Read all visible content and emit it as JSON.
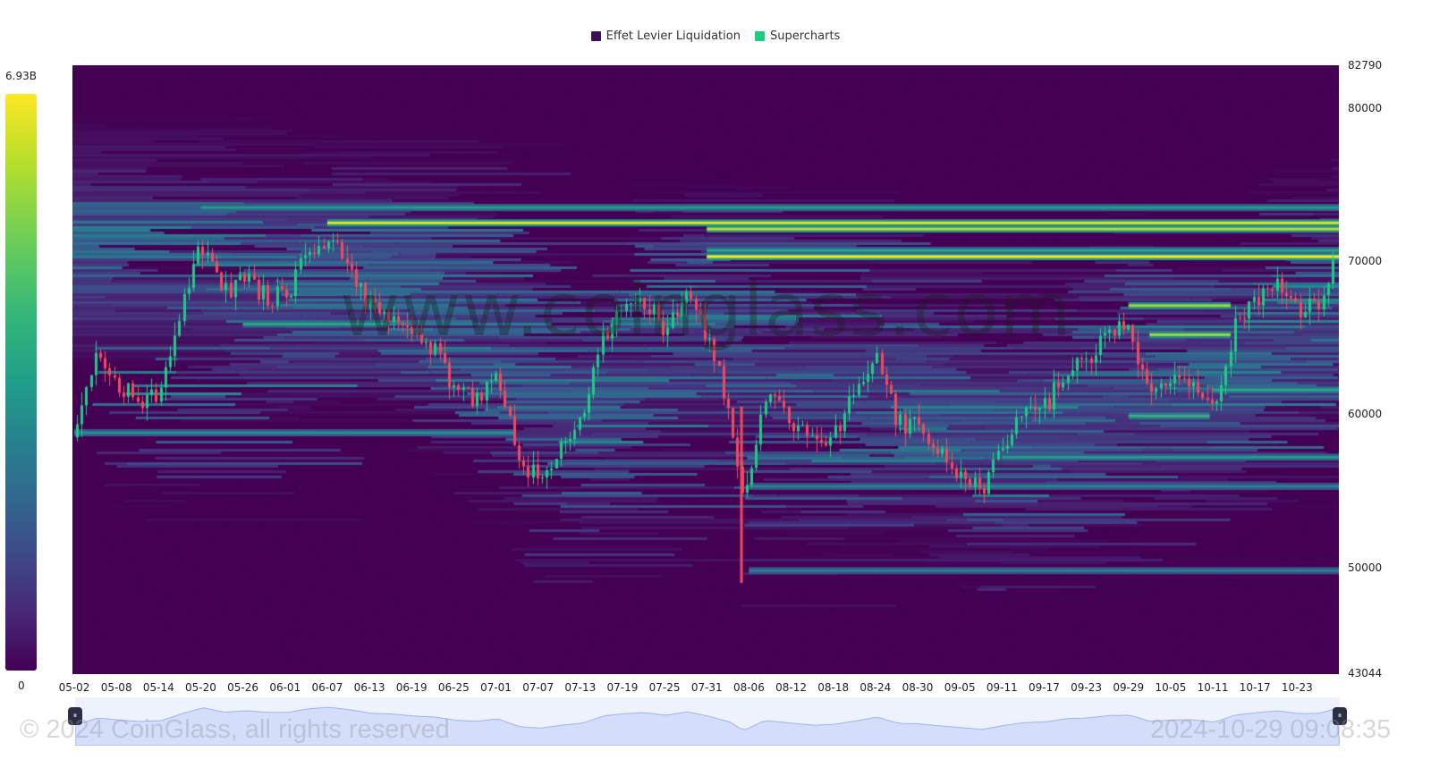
{
  "legend": {
    "items": [
      {
        "label": "Effet Levier Liquidation",
        "color": "#3b0f5c"
      },
      {
        "label": "Supercharts",
        "color": "#1ecb83"
      }
    ]
  },
  "colorbar": {
    "max_label": "6.93B",
    "min_label": "0"
  },
  "watermark": "www.coinglass.com",
  "footer": {
    "copyright": "© 2024 CoinGlass, all rights reserved",
    "timestamp": "2024-10-29 09:08:35"
  },
  "navigator": {
    "left_handle": "⏸",
    "right_handle": "⏸"
  },
  "chart_data": {
    "type": "heatmap",
    "title": "",
    "legend": [
      "Effet Levier Liquidation",
      "Supercharts"
    ],
    "legend_position": "top-center",
    "colorscale": "viridis",
    "colorbar": {
      "min": 0,
      "max": "6.93B"
    },
    "y_axis": {
      "position": "right",
      "min": 43044,
      "max": 82790,
      "ticks": [
        82790,
        80000,
        70000,
        60000,
        50000,
        43044
      ]
    },
    "x_axis": {
      "ticks": [
        "05-02",
        "05-08",
        "05-14",
        "05-20",
        "05-26",
        "06-01",
        "06-07",
        "06-13",
        "06-19",
        "06-25",
        "07-01",
        "07-07",
        "07-13",
        "07-19",
        "07-25",
        "07-31",
        "08-06",
        "08-12",
        "08-18",
        "08-24",
        "08-30",
        "09-05",
        "09-11",
        "09-17",
        "09-23",
        "09-29",
        "10-05",
        "10-11",
        "10-17",
        "10-23"
      ]
    },
    "grid": false,
    "price_series_approx_close": [
      {
        "date": "05-02",
        "close": 58500
      },
      {
        "date": "05-05",
        "close": 63500
      },
      {
        "date": "05-08",
        "close": 62000
      },
      {
        "date": "05-11",
        "close": 60800
      },
      {
        "date": "05-14",
        "close": 61500
      },
      {
        "date": "05-17",
        "close": 66800
      },
      {
        "date": "05-20",
        "close": 71200
      },
      {
        "date": "05-23",
        "close": 67800
      },
      {
        "date": "05-26",
        "close": 69000
      },
      {
        "date": "05-29",
        "close": 67800
      },
      {
        "date": "06-01",
        "close": 67600
      },
      {
        "date": "06-04",
        "close": 70500
      },
      {
        "date": "06-07",
        "close": 71500
      },
      {
        "date": "06-10",
        "close": 69600
      },
      {
        "date": "06-13",
        "close": 67000
      },
      {
        "date": "06-16",
        "close": 66500
      },
      {
        "date": "06-19",
        "close": 65000
      },
      {
        "date": "06-22",
        "close": 64200
      },
      {
        "date": "06-25",
        "close": 61800
      },
      {
        "date": "06-28",
        "close": 61000
      },
      {
        "date": "07-01",
        "close": 62800
      },
      {
        "date": "07-04",
        "close": 57000
      },
      {
        "date": "07-07",
        "close": 55800
      },
      {
        "date": "07-10",
        "close": 58000
      },
      {
        "date": "07-13",
        "close": 59500
      },
      {
        "date": "07-16",
        "close": 65000
      },
      {
        "date": "07-19",
        "close": 66800
      },
      {
        "date": "07-22",
        "close": 67500
      },
      {
        "date": "07-25",
        "close": 65500
      },
      {
        "date": "07-28",
        "close": 68200
      },
      {
        "date": "07-31",
        "close": 64800
      },
      {
        "date": "08-03",
        "close": 60500
      },
      {
        "date": "08-05",
        "close": 54000
      },
      {
        "date": "08-08",
        "close": 61500
      },
      {
        "date": "08-12",
        "close": 59500
      },
      {
        "date": "08-15",
        "close": 58000
      },
      {
        "date": "08-18",
        "close": 58800
      },
      {
        "date": "08-21",
        "close": 61200
      },
      {
        "date": "08-24",
        "close": 64200
      },
      {
        "date": "08-27",
        "close": 59500
      },
      {
        "date": "08-30",
        "close": 59100
      },
      {
        "date": "09-02",
        "close": 57500
      },
      {
        "date": "09-05",
        "close": 56200
      },
      {
        "date": "09-08",
        "close": 54800
      },
      {
        "date": "09-11",
        "close": 57800
      },
      {
        "date": "09-14",
        "close": 60000
      },
      {
        "date": "09-17",
        "close": 60500
      },
      {
        "date": "09-20",
        "close": 63000
      },
      {
        "date": "09-23",
        "close": 63500
      },
      {
        "date": "09-26",
        "close": 65300
      },
      {
        "date": "09-29",
        "close": 65600
      },
      {
        "date": "10-02",
        "close": 60800
      },
      {
        "date": "10-05",
        "close": 62000
      },
      {
        "date": "10-08",
        "close": 62200
      },
      {
        "date": "10-11",
        "close": 60300
      },
      {
        "date": "10-14",
        "close": 65600
      },
      {
        "date": "10-17",
        "close": 67500
      },
      {
        "date": "10-20",
        "close": 68900
      },
      {
        "date": "10-23",
        "close": 66800
      },
      {
        "date": "10-26",
        "close": 67000
      },
      {
        "date": "10-29",
        "close": 71500
      }
    ],
    "liquidation_bands_approx": [
      {
        "price": 72500,
        "intensity": 0.95,
        "from": "06-07",
        "to": "10-29"
      },
      {
        "price": 72100,
        "intensity": 0.9,
        "from": "07-31",
        "to": "10-29"
      },
      {
        "price": 70300,
        "intensity": 1.0,
        "from": "07-31",
        "to": "10-29"
      },
      {
        "price": 70700,
        "intensity": 0.6,
        "from": "07-31",
        "to": "10-29"
      },
      {
        "price": 73500,
        "intensity": 0.55,
        "from": "05-20",
        "to": "10-29"
      },
      {
        "price": 67100,
        "intensity": 0.85,
        "from": "09-29",
        "to": "10-11"
      },
      {
        "price": 65200,
        "intensity": 0.85,
        "from": "10-02",
        "to": "10-11"
      },
      {
        "price": 65900,
        "intensity": 0.6,
        "from": "05-26",
        "to": "06-13"
      },
      {
        "price": 61600,
        "intensity": 0.6,
        "from": "10-11",
        "to": "10-29"
      },
      {
        "price": 59900,
        "intensity": 0.65,
        "from": "09-29",
        "to": "10-08"
      },
      {
        "price": 57200,
        "intensity": 0.55,
        "from": "09-11",
        "to": "10-29"
      },
      {
        "price": 58800,
        "intensity": 0.5,
        "from": "05-02",
        "to": "07-01"
      },
      {
        "price": 49800,
        "intensity": 0.45,
        "from": "08-06",
        "to": "10-29"
      },
      {
        "price": 55300,
        "intensity": 0.45,
        "from": "08-06",
        "to": "10-29"
      }
    ]
  }
}
